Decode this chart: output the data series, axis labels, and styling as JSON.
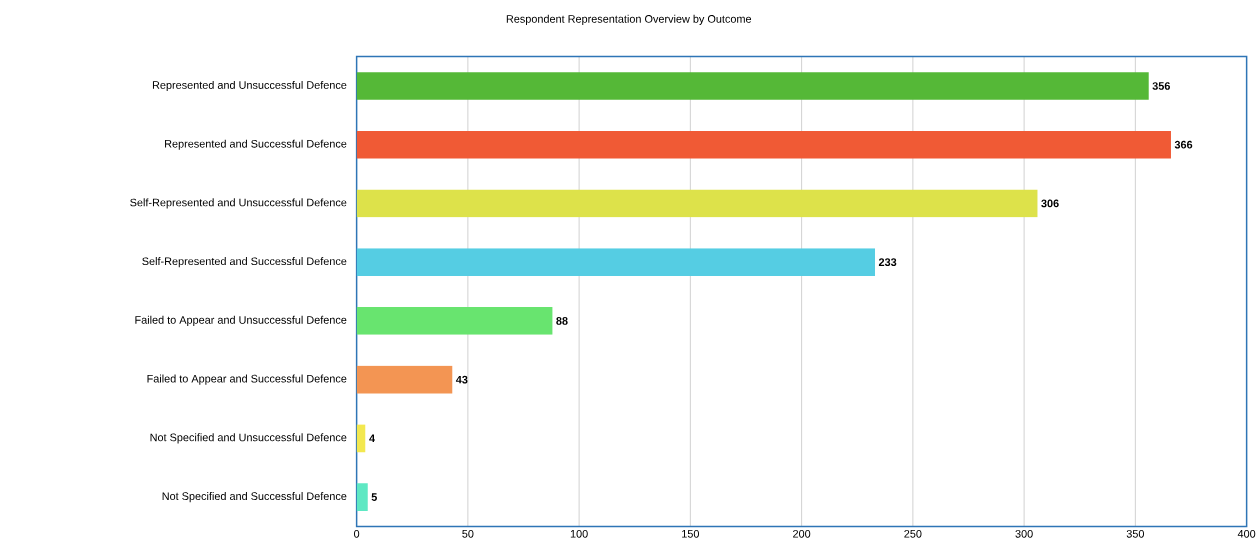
{
  "chart_data": {
    "type": "bar",
    "orientation": "horizontal",
    "title": "Respondent Representation Overview by Outcome",
    "categories": [
      "Represented and Unsuccessful Defence",
      "Represented and Successful Defence",
      "Self-Represented and Unsuccessful Defence",
      "Self-Represented and Successful Defence",
      "Failed to Appear and Unsuccessful Defence",
      "Failed to Appear and Successful Defence",
      "Not Specified and Unsuccessful Defence",
      "Not Specified and Successful Defence"
    ],
    "values": [
      356,
      366,
      306,
      233,
      88,
      43,
      4,
      5
    ],
    "colors": [
      "#55b837",
      "#f05a35",
      "#dde24a",
      "#55cde3",
      "#68e46f",
      "#f39553",
      "#f3e84f",
      "#5ee8c3"
    ],
    "xlim": [
      0,
      400
    ],
    "xticks": [
      0,
      50,
      100,
      150,
      200,
      250,
      300,
      350,
      400
    ],
    "grid": "x",
    "data_labels": true
  }
}
